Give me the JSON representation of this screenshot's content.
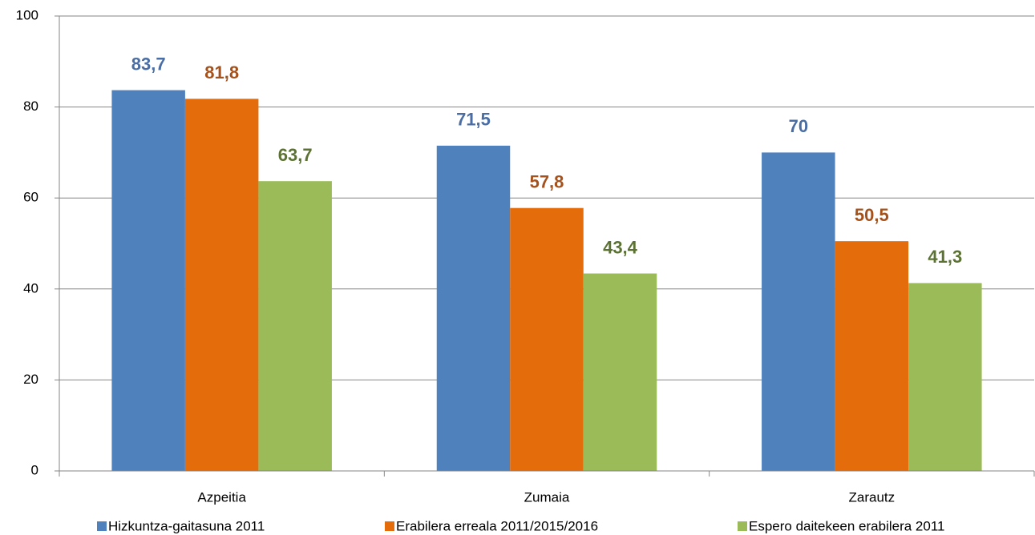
{
  "chart_data": {
    "type": "bar",
    "categories": [
      "Azpeitia",
      "Zumaia",
      "Zarautz"
    ],
    "series": [
      {
        "name": "Hizkuntza-gaitasuna 2011",
        "color": "#4f81bd",
        "label_color": "#4a6da3",
        "values": [
          83.7,
          71.5,
          70
        ],
        "value_labels": [
          "83,7",
          "71,5",
          "70"
        ]
      },
      {
        "name": "Erabilera erreala 2011/2015/2016",
        "color": "#e46c0a",
        "label_color": "#a5511b",
        "values": [
          81.8,
          57.8,
          50.5
        ],
        "value_labels": [
          "81,8",
          "57,8",
          "50,5"
        ]
      },
      {
        "name": "Espero daitekeen erabilera 2011",
        "color": "#9bbb59",
        "label_color": "#5b7233",
        "values": [
          63.7,
          43.4,
          41.3
        ],
        "value_labels": [
          "63,7",
          "43,4",
          "41,3"
        ]
      }
    ],
    "ylim": [
      0,
      100
    ],
    "yticks": [
      0,
      20,
      40,
      60,
      80,
      100
    ],
    "grid": true,
    "legend": "bottom"
  }
}
